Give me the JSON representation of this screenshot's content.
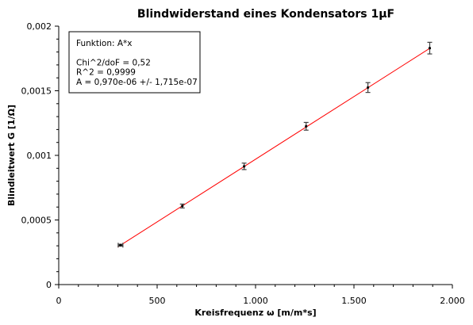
{
  "chart_data": {
    "type": "scatter",
    "title": "Blindwiderstand eines Kondensators 1µF",
    "xlabel": "Kreisfrequenz ω [m/m*s]",
    "ylabel": "Blindleitwert G [1/Ω]",
    "xlim": [
      0,
      2000
    ],
    "ylim": [
      0,
      0.002
    ],
    "x_ticks": [
      0,
      500,
      1000,
      1500,
      2000
    ],
    "x_tick_labels": [
      "0",
      "500",
      "1.000",
      "1.500",
      "2.000"
    ],
    "y_ticks": [
      0,
      0.0005,
      0.001,
      0.0015,
      0.002
    ],
    "y_tick_labels": [
      "0",
      "0,0005",
      "0,001",
      "0,0015",
      "0,002"
    ],
    "grid": false,
    "series": [
      {
        "x": [
          314,
          628,
          942,
          1257,
          1571,
          1885
        ],
        "y": [
          0.000305,
          0.000608,
          0.000915,
          0.001225,
          0.001525,
          0.00183
        ],
        "yerr": [
          7e-06,
          1.5e-05,
          2.5e-05,
          3e-05,
          3.8e-05,
          4.5e-05
        ],
        "xerr": [
          12,
          0,
          0,
          0,
          0,
          0
        ],
        "marker_color": "#000000",
        "errorbar_color": "#404040"
      }
    ],
    "fit": {
      "model": "A*x",
      "A": 9.7e-07,
      "x_range": [
        300,
        1890
      ],
      "color": "#ff0000"
    },
    "annotation": {
      "lines": [
        "Funktion: A*x",
        "",
        "Chi^2/doF = 0,52",
        "R^2 = 0,9999",
        "A = 0,970e-06 +/- 1,715e-07"
      ],
      "position": "top-left"
    }
  }
}
